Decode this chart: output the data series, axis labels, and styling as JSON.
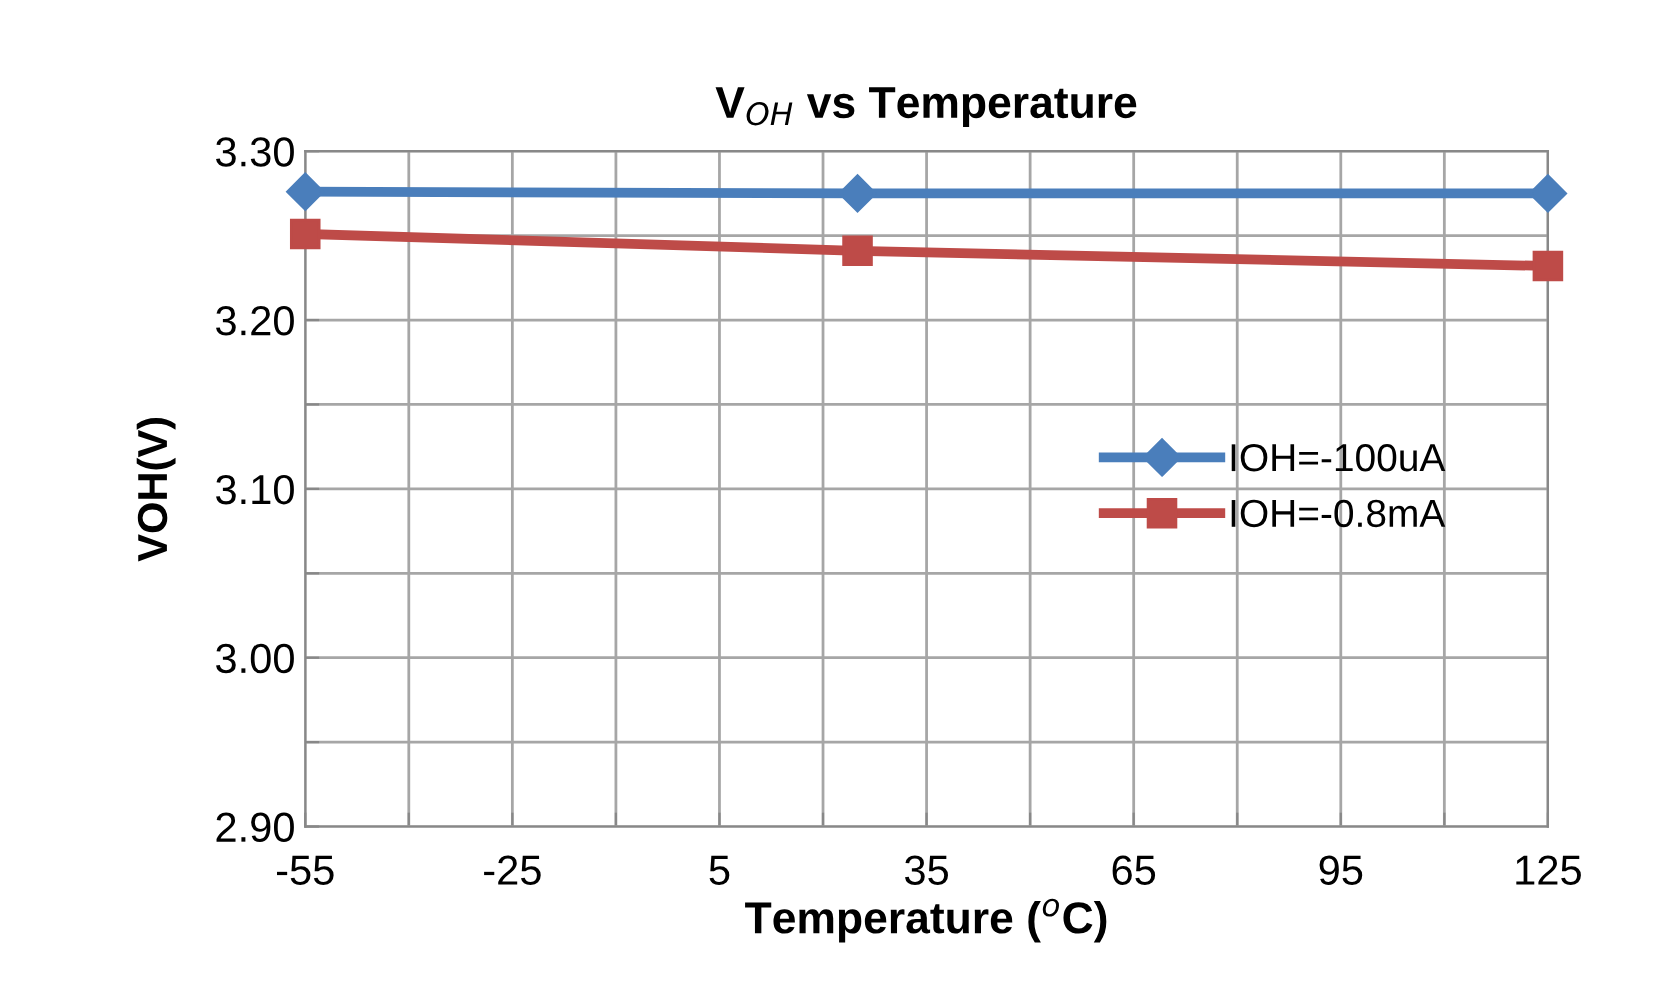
{
  "chart_data": {
    "type": "line",
    "title": "V$_{OH}$ vs Temperature",
    "xlabel": "Temperature ($^{o}$C)",
    "ylabel": "VOH(V)",
    "x": [
      -55,
      25,
      125
    ],
    "series": [
      {
        "name": "IOH=-100uA",
        "color": "#4a7ebb",
        "marker": "diamond",
        "values": [
          3.276,
          3.275,
          3.275
        ]
      },
      {
        "name": "IOH=-0.8mA",
        "color": "#be4b48",
        "marker": "square",
        "values": [
          3.251,
          3.241,
          3.232
        ]
      }
    ],
    "xlim": [
      -55,
      125
    ],
    "xticks": [
      -55,
      {
        "value": -40,
        "label": null
      },
      -25,
      {
        "value": -10,
        "label": null
      },
      5,
      {
        "value": 20,
        "label": null
      },
      35,
      {
        "value": 50,
        "label": null
      },
      65,
      {
        "value": 80,
        "label": null
      },
      95,
      {
        "value": 110,
        "label": null
      },
      125
    ],
    "ylim": [
      2.9,
      3.3
    ],
    "yticks": [
      {
        "value": 2.9,
        "label": "2.90"
      },
      {
        "value": 2.95,
        "label": null
      },
      {
        "value": 3.0,
        "label": "3.00"
      },
      {
        "value": 3.05,
        "label": null
      },
      {
        "value": 3.1,
        "label": "3.10"
      },
      {
        "value": 3.15,
        "label": null
      },
      {
        "value": 3.2,
        "label": "3.20"
      },
      {
        "value": 3.25,
        "label": null
      },
      {
        "value": 3.3,
        "label": "3.30"
      }
    ],
    "grid": true,
    "legend": "right",
    "line_style": "solid"
  }
}
